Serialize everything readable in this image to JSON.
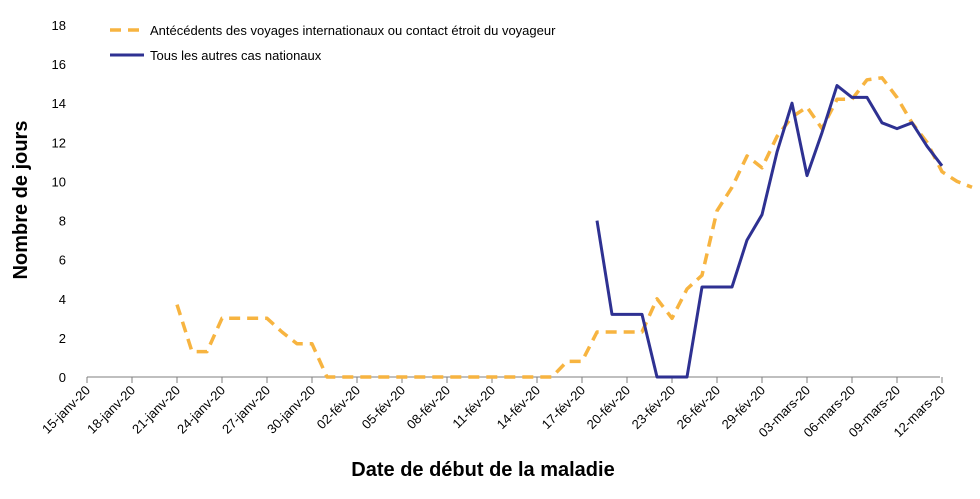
{
  "chart_data": {
    "type": "line",
    "xlabel": "Date de début de la maladie",
    "ylabel": "Nombre de jours",
    "ylim": [
      0,
      18
    ],
    "yticks": [
      0,
      2,
      4,
      6,
      8,
      10,
      12,
      14,
      16,
      18
    ],
    "grid": false,
    "legend_position": "top-left",
    "x_tick_labels": [
      "15-janv-20",
      "18-janv-20",
      "21-janv-20",
      "24-janv-20",
      "27-janv-20",
      "30-janv-20",
      "02-fév-20",
      "05-fév-20",
      "08-fév-20",
      "11-fév-20",
      "14-fév-20",
      "17-fév-20",
      "20-fév-20",
      "23-fév-20",
      "26-fév-20",
      "29-fév-20",
      "03-mars-20",
      "06-mars-20",
      "09-mars-20",
      "12-mars-20"
    ],
    "series": [
      {
        "name": "Antécédents des voyages internationaux ou contact étroit du voyageur",
        "color": "#f7b440",
        "dash": true,
        "x_start": "2020-01-21",
        "values": [
          3.7,
          1.3,
          1.3,
          3.0,
          3.0,
          3.0,
          3.0,
          2.3,
          1.7,
          1.7,
          0.0,
          0.0,
          0.0,
          0.0,
          0.0,
          0.0,
          0.0,
          0.0,
          0.0,
          0.0,
          0.0,
          0.0,
          0.0,
          0.0,
          0.0,
          0.0,
          0.8,
          0.8,
          2.3,
          2.3,
          2.3,
          2.3,
          4.0,
          3.0,
          4.5,
          5.2,
          8.5,
          9.7,
          11.3,
          10.7,
          12.3,
          13.3,
          13.8,
          12.7,
          14.2,
          14.2,
          15.2,
          15.3,
          14.3,
          13.0,
          12.0,
          10.5,
          10.0,
          9.7
        ]
      },
      {
        "name": "Tous les autres cas nationaux",
        "color": "#2e3192",
        "dash": false,
        "x_start": "2020-02-18",
        "values": [
          8.0,
          3.2,
          3.2,
          3.2,
          0.0,
          0.0,
          0.0,
          4.6,
          4.6,
          4.6,
          7.0,
          8.3,
          11.5,
          14.0,
          10.3,
          12.5,
          14.9,
          14.3,
          14.3,
          13.0,
          12.7,
          13.0,
          11.8,
          10.8
        ]
      }
    ]
  }
}
